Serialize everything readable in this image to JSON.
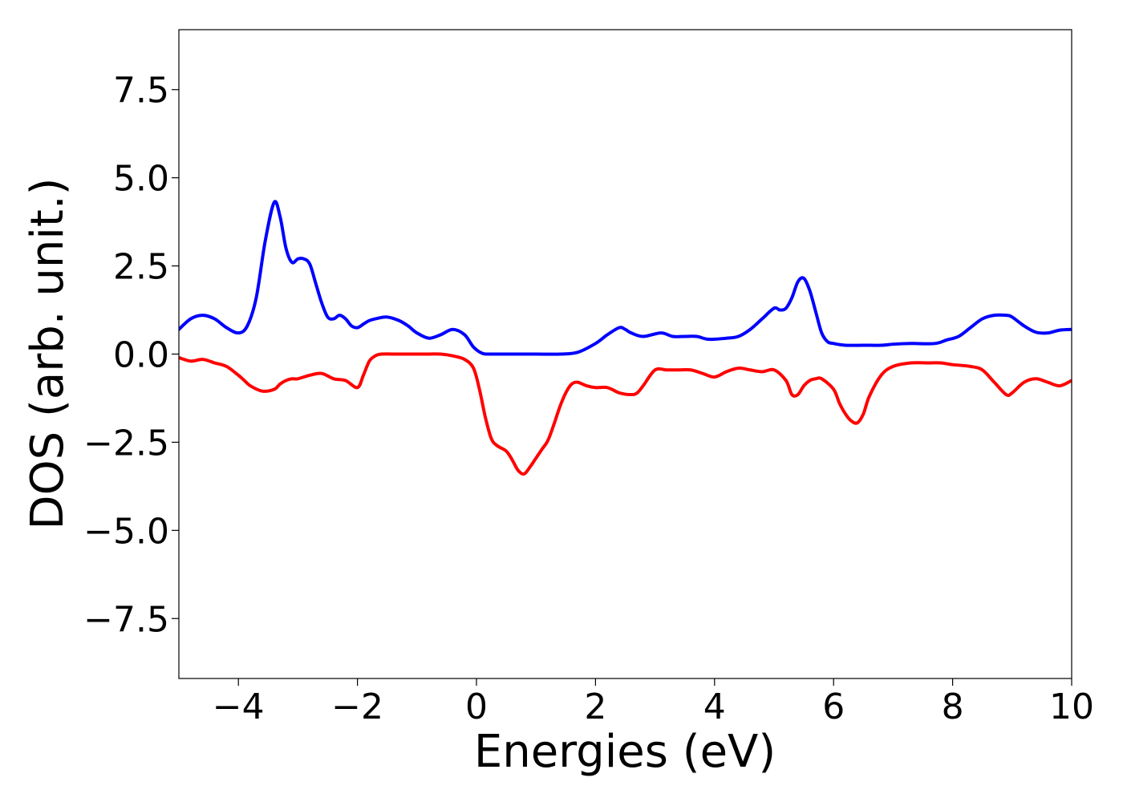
{
  "chart_data": {
    "type": "line",
    "title": "",
    "xlabel": "Energies (eV)",
    "ylabel": "DOS (arb. unit.)",
    "xlim": [
      -5,
      10
    ],
    "ylim": [
      -9.2,
      9.2
    ],
    "xticks": [
      -4,
      -2,
      0,
      2,
      4,
      6,
      8,
      10
    ],
    "xtick_labels": [
      "−4",
      "−2",
      "0",
      "2",
      "4",
      "6",
      "8",
      "10"
    ],
    "yticks": [
      7.5,
      5.0,
      2.5,
      0.0,
      -2.5,
      -5.0,
      -7.5
    ],
    "ytick_labels": [
      "7.5",
      "5.0",
      "2.5",
      "0.0",
      "−2.5",
      "−5.0",
      "−7.5"
    ],
    "grid": false,
    "legend": "none",
    "series": [
      {
        "color": "#0000ff",
        "x": [
          -5.0,
          -4.8,
          -4.6,
          -4.4,
          -4.2,
          -4.0,
          -3.85,
          -3.7,
          -3.55,
          -3.4,
          -3.3,
          -3.2,
          -3.1,
          -3.0,
          -2.9,
          -2.8,
          -2.7,
          -2.6,
          -2.5,
          -2.4,
          -2.3,
          -2.2,
          -2.1,
          -2.0,
          -1.9,
          -1.8,
          -1.7,
          -1.5,
          -1.3,
          -1.15,
          -1.0,
          -0.8,
          -0.6,
          -0.4,
          -0.2,
          -0.05,
          0.1,
          0.25,
          0.4,
          0.6,
          1.0,
          1.4,
          1.7,
          2.0,
          2.2,
          2.4,
          2.5,
          2.6,
          2.8,
          3.1,
          3.3,
          3.5,
          3.7,
          3.9,
          4.2,
          4.4,
          4.6,
          4.8,
          5.0,
          5.1,
          5.2,
          5.3,
          5.4,
          5.5,
          5.6,
          5.7,
          5.8,
          5.9,
          6.0,
          6.2,
          6.5,
          6.8,
          7.0,
          7.3,
          7.7,
          7.9,
          8.1,
          8.3,
          8.5,
          8.7,
          8.9,
          9.0,
          9.2,
          9.4,
          9.6,
          9.8,
          10.0
        ],
        "values": [
          0.7,
          1.0,
          1.1,
          1.0,
          0.75,
          0.6,
          0.8,
          1.6,
          3.2,
          4.3,
          3.9,
          3.0,
          2.6,
          2.7,
          2.7,
          2.55,
          2.0,
          1.45,
          1.05,
          1.0,
          1.1,
          1.0,
          0.8,
          0.75,
          0.85,
          0.95,
          1.0,
          1.05,
          0.95,
          0.8,
          0.6,
          0.45,
          0.55,
          0.7,
          0.55,
          0.2,
          0.02,
          0.0,
          0.0,
          0.0,
          0.0,
          0.0,
          0.05,
          0.3,
          0.55,
          0.75,
          0.7,
          0.6,
          0.5,
          0.6,
          0.5,
          0.5,
          0.5,
          0.42,
          0.45,
          0.5,
          0.7,
          1.0,
          1.3,
          1.25,
          1.3,
          1.6,
          2.05,
          2.15,
          1.8,
          1.2,
          0.6,
          0.35,
          0.3,
          0.25,
          0.25,
          0.25,
          0.28,
          0.3,
          0.3,
          0.4,
          0.5,
          0.75,
          1.0,
          1.1,
          1.1,
          1.05,
          0.8,
          0.62,
          0.6,
          0.68,
          0.7
        ]
      },
      {
        "color": "#ff0000",
        "x": [
          -5.0,
          -4.8,
          -4.6,
          -4.4,
          -4.2,
          -4.0,
          -3.9,
          -3.8,
          -3.6,
          -3.4,
          -3.3,
          -3.2,
          -3.1,
          -3.0,
          -2.8,
          -2.6,
          -2.4,
          -2.2,
          -2.0,
          -1.9,
          -1.8,
          -1.7,
          -1.6,
          -1.4,
          -1.2,
          -1.0,
          -0.8,
          -0.6,
          -0.4,
          -0.2,
          -0.05,
          0.05,
          0.15,
          0.25,
          0.35,
          0.5,
          0.6,
          0.7,
          0.8,
          0.9,
          1.0,
          1.1,
          1.2,
          1.3,
          1.4,
          1.5,
          1.6,
          1.7,
          1.85,
          2.0,
          2.2,
          2.4,
          2.6,
          2.7,
          2.8,
          3.0,
          3.2,
          3.4,
          3.6,
          3.8,
          4.0,
          4.2,
          4.4,
          4.6,
          4.8,
          5.0,
          5.2,
          5.3,
          5.4,
          5.5,
          5.6,
          5.7,
          5.8,
          6.0,
          6.1,
          6.2,
          6.3,
          6.4,
          6.5,
          6.6,
          6.8,
          7.0,
          7.3,
          7.6,
          7.8,
          8.0,
          8.3,
          8.5,
          8.7,
          8.9,
          9.0,
          9.2,
          9.4,
          9.6,
          9.8,
          10.0
        ],
        "values": [
          -0.1,
          -0.2,
          -0.15,
          -0.25,
          -0.35,
          -0.6,
          -0.75,
          -0.9,
          -1.05,
          -1.0,
          -0.85,
          -0.75,
          -0.7,
          -0.7,
          -0.6,
          -0.55,
          -0.7,
          -0.75,
          -0.95,
          -0.6,
          -0.2,
          -0.05,
          0.0,
          0.0,
          0.0,
          0.0,
          0.0,
          0.0,
          -0.05,
          -0.15,
          -0.4,
          -1.0,
          -1.8,
          -2.4,
          -2.6,
          -2.75,
          -3.0,
          -3.3,
          -3.4,
          -3.2,
          -2.95,
          -2.7,
          -2.45,
          -2.0,
          -1.5,
          -1.1,
          -0.85,
          -0.8,
          -0.9,
          -0.95,
          -0.95,
          -1.1,
          -1.15,
          -1.1,
          -0.9,
          -0.45,
          -0.45,
          -0.45,
          -0.45,
          -0.55,
          -0.65,
          -0.5,
          -0.4,
          -0.45,
          -0.5,
          -0.45,
          -0.75,
          -1.15,
          -1.15,
          -0.9,
          -0.75,
          -0.7,
          -0.7,
          -1.0,
          -1.4,
          -1.7,
          -1.9,
          -1.95,
          -1.7,
          -1.2,
          -0.6,
          -0.35,
          -0.25,
          -0.25,
          -0.25,
          -0.3,
          -0.35,
          -0.45,
          -0.8,
          -1.15,
          -1.1,
          -0.8,
          -0.7,
          -0.8,
          -0.9,
          -0.75
        ]
      }
    ]
  }
}
